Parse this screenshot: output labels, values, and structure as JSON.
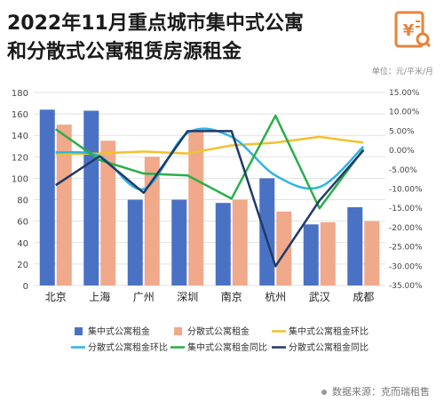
{
  "header": {
    "title_line1": "2022年11月重点城市集中式公寓",
    "title_line2": "和分散式公寓租赁房源租金",
    "unit": "单位：元/平米/月",
    "source": "数据来源：克而瑞租售"
  },
  "colors": {
    "centralized_rent": "#4a72c4",
    "distributed_rent": "#f0a98a",
    "centralized_mom": "#f2c12e",
    "distributed_mom": "#2fb4e6",
    "centralized_yoy": "#2bae4a",
    "distributed_yoy": "#1f3b68",
    "logo": "#e8833a"
  },
  "chart_data": {
    "type": "bar",
    "categories": [
      "北京",
      "上海",
      "广州",
      "深圳",
      "南京",
      "杭州",
      "武汉",
      "成都"
    ],
    "left_axis": {
      "ylim": [
        0,
        180
      ],
      "ticks": [
        0,
        20,
        40,
        60,
        80,
        100,
        120,
        140,
        160,
        180
      ]
    },
    "right_axis": {
      "ylim": [
        -35,
        15
      ],
      "ticks": [
        -35,
        -30,
        -25,
        -20,
        -15,
        -10,
        -5,
        0,
        5,
        10,
        15
      ],
      "tick_labels": [
        "-35.00%",
        "-30.00%",
        "-25.00%",
        "-20.00%",
        "-15.00%",
        "-10.00%",
        "-5.00%",
        "0.00%",
        "5.00%",
        "10.00%",
        "15.00%"
      ]
    },
    "grid": true,
    "legend_position": "bottom",
    "bar_series": [
      {
        "name": "集中式公寓租金",
        "color": "#4a72c4",
        "values": [
          164,
          163,
          80,
          80,
          77,
          100,
          57,
          73
        ]
      },
      {
        "name": "分散式公寓租金",
        "color": "#f0a98a",
        "values": [
          150,
          135,
          120,
          144,
          80,
          69,
          59,
          60
        ]
      }
    ],
    "line_series": [
      {
        "name": "集中式公寓租金环比",
        "color": "#f2c12e",
        "values": [
          -1.0,
          -0.8,
          -0.3,
          -0.8,
          1.3,
          2.0,
          3.5,
          2.0
        ]
      },
      {
        "name": "分散式公寓租金环比",
        "color": "#2fb4e6",
        "values": [
          -0.5,
          -1.5,
          -10.0,
          4.5,
          3.5,
          -6.5,
          -9.5,
          1.0
        ]
      },
      {
        "name": "集中式公寓租金同比",
        "color": "#2bae4a",
        "values": [
          5.5,
          -2.5,
          -6.0,
          -6.5,
          -12.5,
          9.0,
          -15.0,
          0.3
        ]
      },
      {
        "name": "分散式公寓租金同比",
        "color": "#1f3b68",
        "values": [
          -9.0,
          -1.5,
          -11.0,
          5.0,
          5.0,
          -30.0,
          -13.0,
          0.0
        ]
      }
    ]
  }
}
